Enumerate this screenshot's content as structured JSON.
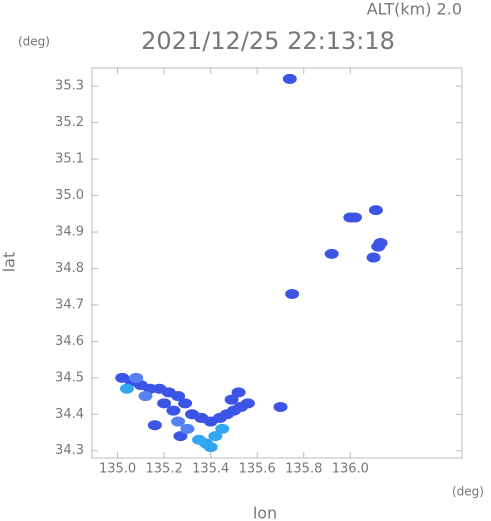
{
  "chart_data": {
    "type": "scatter",
    "title": "2021/12/25 22:13:18",
    "subtitle": "ALT(km) 2.0",
    "x_label": "lon",
    "y_label": "lat",
    "x_unit": "(deg)",
    "y_unit": "(deg)",
    "xlim": [
      134.89,
      136.48
    ],
    "ylim": [
      34.28,
      35.35
    ],
    "xticks": [
      {
        "value": 135,
        "label": "135.0"
      },
      135.2,
      135.4,
      135.6,
      135.8,
      {
        "value": 136,
        "label": "136.0"
      }
    ],
    "yticks": [
      34.3,
      34.4,
      34.5,
      34.6,
      34.7,
      34.8,
      34.9,
      {
        "value": 35,
        "label": "35.0"
      },
      35.1,
      35.2,
      35.3
    ],
    "series": [
      {
        "color": "#3d55e6",
        "x": [
          135.02,
          135.06,
          135.1,
          135.14,
          135.18,
          135.22,
          135.26,
          135.29,
          135.2,
          135.24,
          135.32,
          135.36,
          135.4,
          135.44,
          135.47,
          135.5,
          135.53,
          135.56,
          135.49,
          135.52,
          135.7,
          135.74,
          135.75,
          135.92,
          136.0,
          136.02,
          136.11,
          136.12,
          136.1,
          136.13,
          135.16,
          135.27
        ],
        "y": [
          34.5,
          34.49,
          34.48,
          34.47,
          34.47,
          34.46,
          34.45,
          34.43,
          34.43,
          34.41,
          34.4,
          34.39,
          34.38,
          34.39,
          34.4,
          34.41,
          34.42,
          34.43,
          34.44,
          34.46,
          34.42,
          35.32,
          34.73,
          34.84,
          34.94,
          34.94,
          34.96,
          34.86,
          34.83,
          34.87,
          34.37,
          34.34
        ]
      },
      {
        "color": "#33a6f2",
        "x": [
          135.04,
          135.35,
          135.38,
          135.42,
          135.45,
          135.4
        ],
        "y": [
          34.47,
          34.33,
          34.32,
          34.34,
          34.36,
          34.31
        ]
      },
      {
        "color": "#5582f0",
        "x": [
          135.08,
          135.12,
          135.26,
          135.3
        ],
        "y": [
          34.5,
          34.45,
          34.38,
          34.36
        ]
      }
    ]
  }
}
